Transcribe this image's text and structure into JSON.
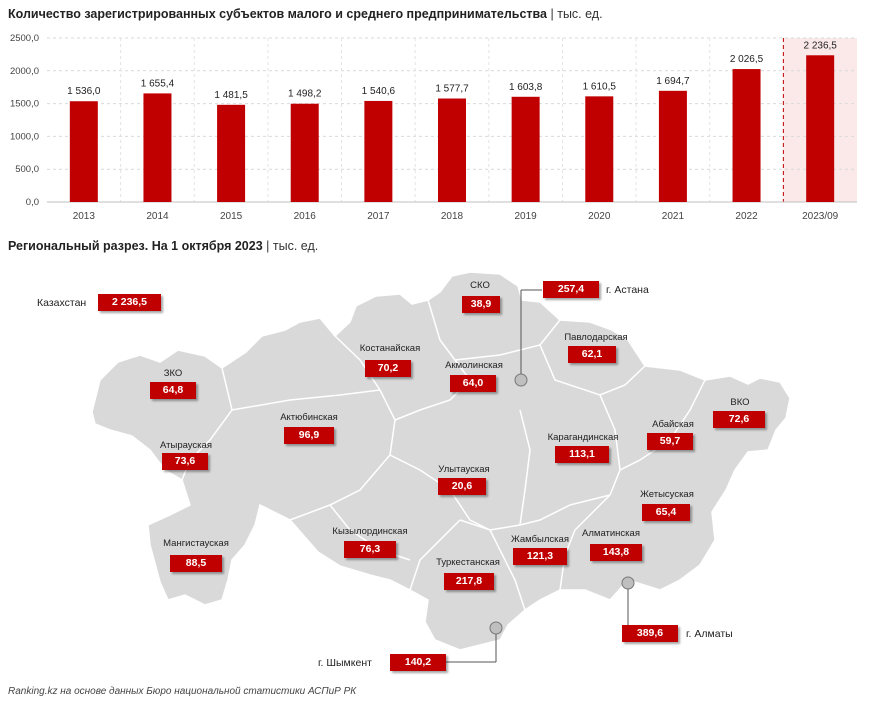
{
  "header": {
    "title": "Количество зарегистрированных субъектов малого и среднего предпринимательства",
    "unit": "| тыс. ед."
  },
  "chart_data": {
    "type": "bar",
    "categories": [
      "2013",
      "2014",
      "2015",
      "2016",
      "2017",
      "2018",
      "2019",
      "2020",
      "2021",
      "2022",
      "2023/09"
    ],
    "values": [
      1536.0,
      1655.4,
      1481.5,
      1498.2,
      1540.6,
      1577.7,
      1603.8,
      1610.5,
      1694.7,
      2026.5,
      2236.5
    ],
    "value_labels": [
      "1 536,0",
      "1 655,4",
      "1 481,5",
      "1 498,2",
      "1 540,6",
      "1 577,7",
      "1 603,8",
      "1 610,5",
      "1 694,7",
      "2 026,5",
      "2 236,5"
    ],
    "yticks": [
      "0,0",
      "500,0",
      "1000,0",
      "1500,0",
      "2000,0",
      "2500,0"
    ],
    "ylim": [
      0,
      2500
    ],
    "bar_color": "#c00000",
    "highlight_last": true,
    "grid": true
  },
  "map": {
    "title": "Региональный разрез. На 1 октября 2023",
    "unit": "| тыс. ед.",
    "kazakhstan": {
      "name": "Казахстан",
      "value": "2 236,5"
    },
    "regions": [
      {
        "name": "СКО",
        "value": "38,9"
      },
      {
        "name": "Павлодарская",
        "value": "62,1"
      },
      {
        "name": "Костанайская",
        "value": "70,2"
      },
      {
        "name": "Акмолинская",
        "value": "64,0"
      },
      {
        "name": "ЗКО",
        "value": "64,8"
      },
      {
        "name": "ВКО",
        "value": "72,6"
      },
      {
        "name": "Актюбинская",
        "value": "96,9"
      },
      {
        "name": "Абайская",
        "value": "59,7"
      },
      {
        "name": "Карагандинская",
        "value": "113,1"
      },
      {
        "name": "Атырауская",
        "value": "73,6"
      },
      {
        "name": "Улытауская",
        "value": "20,6"
      },
      {
        "name": "Жетысуская",
        "value": "65,4"
      },
      {
        "name": "Кызылординская",
        "value": "76,3"
      },
      {
        "name": "Жамбылская",
        "value": "121,3"
      },
      {
        "name": "Алматинская",
        "value": "143,8"
      },
      {
        "name": "Мангистауская",
        "value": "88,5"
      },
      {
        "name": "Туркестанская",
        "value": "217,8"
      }
    ],
    "cities": [
      {
        "name": "г. Астана",
        "value": "257,4"
      },
      {
        "name": "г. Алматы",
        "value": "389,6"
      },
      {
        "name": "г. Шымкент",
        "value": "140,2"
      }
    ]
  },
  "footer": "Ranking.kz на основе данных Бюро национальной статистики АСПиР РК"
}
